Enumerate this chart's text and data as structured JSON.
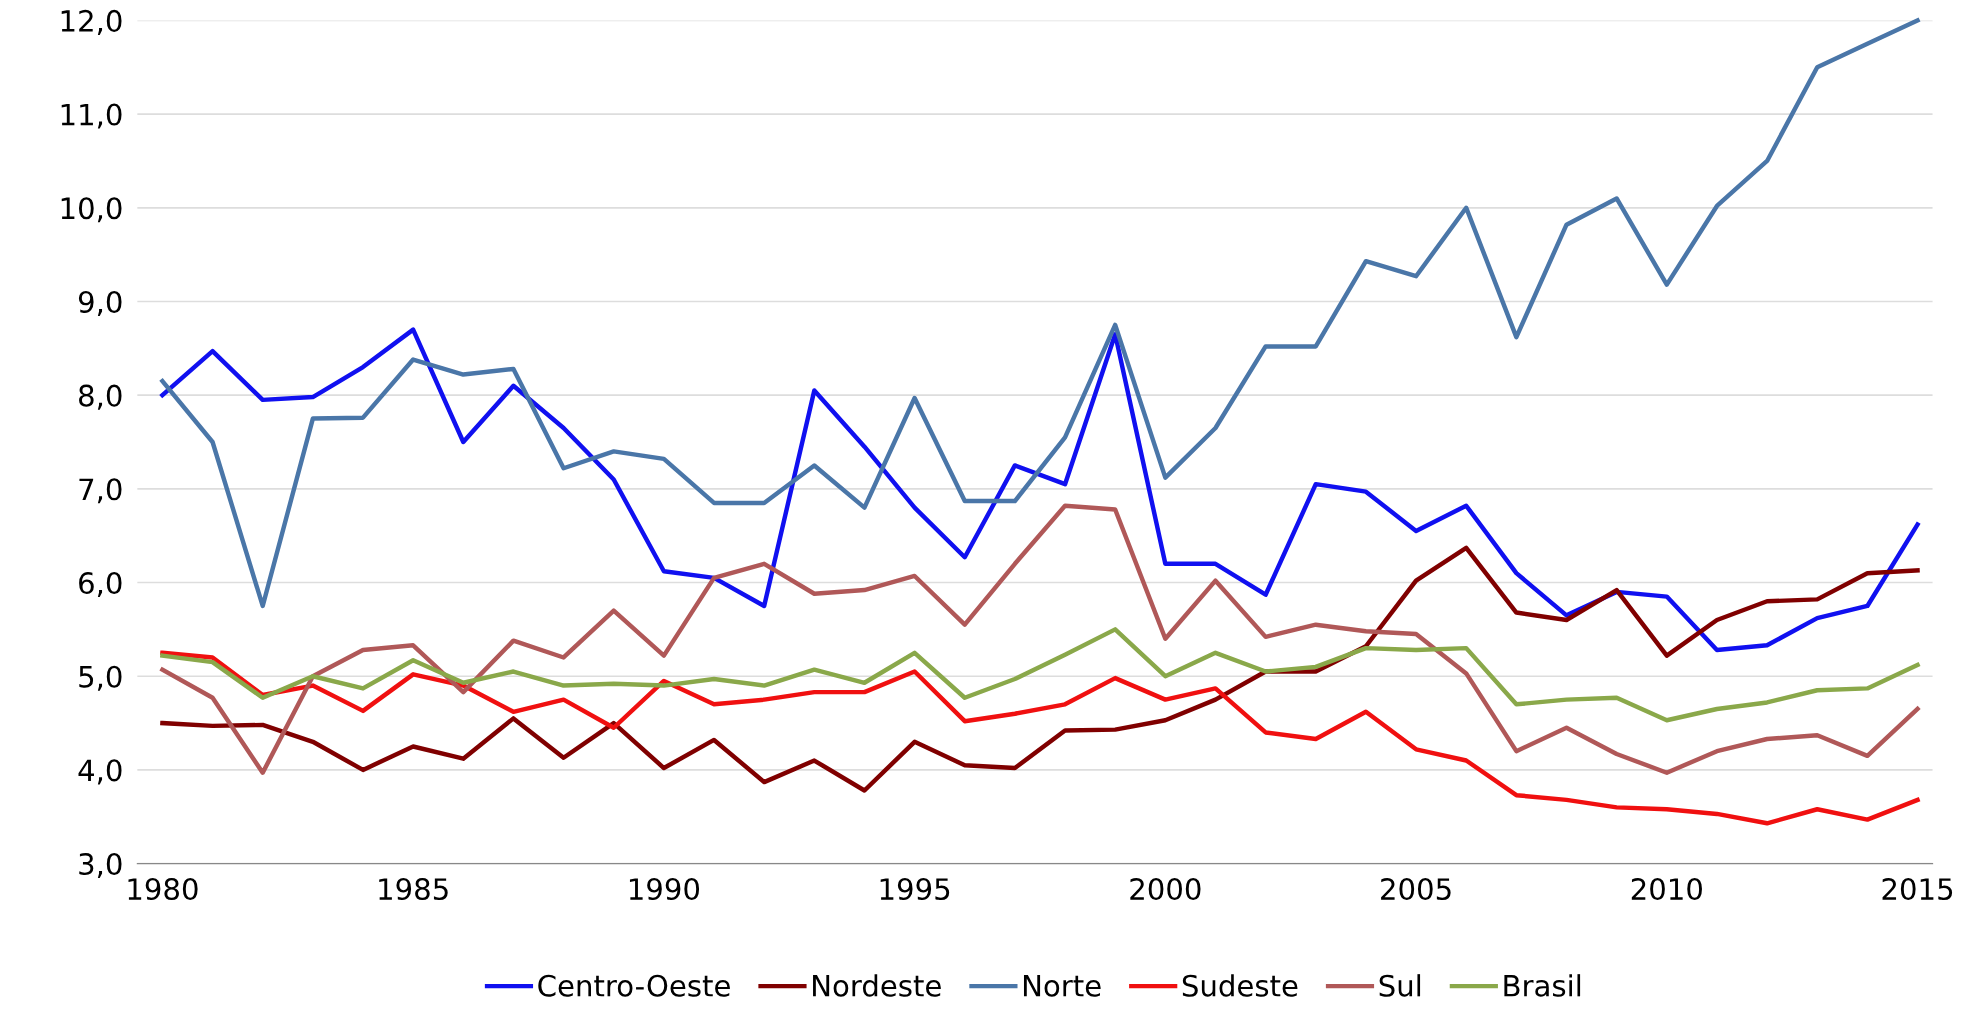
{
  "chart_data": {
    "type": "line",
    "x": [
      1980,
      1981,
      1982,
      1983,
      1984,
      1985,
      1986,
      1987,
      1988,
      1989,
      1990,
      1991,
      1992,
      1993,
      1994,
      1995,
      1996,
      1997,
      1998,
      1999,
      2000,
      2001,
      2002,
      2003,
      2004,
      2005,
      2006,
      2007,
      2008,
      2009,
      2010,
      2011,
      2012,
      2013,
      2014,
      2015
    ],
    "series": [
      {
        "name": "Centro-Oeste",
        "color": "#1010f0",
        "values": [
          8.0,
          8.47,
          7.95,
          7.98,
          8.3,
          8.7,
          7.5,
          8.1,
          7.65,
          7.1,
          6.12,
          6.05,
          5.75,
          8.05,
          7.45,
          6.8,
          6.27,
          7.25,
          7.05,
          8.65,
          6.2,
          6.2,
          5.87,
          7.05,
          6.97,
          6.55,
          6.82,
          6.1,
          5.65,
          5.9,
          5.85,
          5.28,
          5.33,
          5.62,
          5.75,
          6.62
        ]
      },
      {
        "name": "Nordeste",
        "color": "#800000",
        "values": [
          4.5,
          4.47,
          4.48,
          4.3,
          4.0,
          4.25,
          4.12,
          4.55,
          4.13,
          4.5,
          4.02,
          4.32,
          3.87,
          4.1,
          3.78,
          4.3,
          4.05,
          4.02,
          4.42,
          4.43,
          4.53,
          4.75,
          5.05,
          5.05,
          5.32,
          6.02,
          6.37,
          5.68,
          5.6,
          5.92,
          5.22,
          5.6,
          5.8,
          5.82,
          6.1,
          6.13
        ]
      },
      {
        "name": "Norte",
        "color": "#4a76a8",
        "values": [
          8.15,
          7.5,
          5.75,
          7.75,
          7.76,
          8.38,
          8.22,
          8.28,
          7.22,
          7.4,
          7.32,
          6.85,
          6.85,
          7.25,
          6.8,
          7.97,
          6.87,
          6.87,
          7.55,
          8.75,
          7.12,
          7.65,
          8.52,
          8.52,
          9.43,
          9.27,
          10.0,
          8.62,
          9.82,
          10.1,
          9.18,
          10.02,
          10.5,
          11.5,
          11.75,
          12.0
        ]
      },
      {
        "name": "Sudeste",
        "color": "#f01010",
        "values": [
          5.25,
          5.2,
          4.8,
          4.9,
          4.63,
          5.02,
          4.9,
          4.62,
          4.75,
          4.45,
          4.95,
          4.7,
          4.75,
          4.83,
          4.83,
          5.05,
          4.52,
          4.6,
          4.7,
          4.98,
          4.75,
          4.87,
          4.4,
          4.33,
          4.62,
          4.22,
          4.1,
          3.73,
          3.68,
          3.6,
          3.58,
          3.53,
          3.43,
          3.58,
          3.47,
          3.68
        ]
      },
      {
        "name": "Sul",
        "color": "#b05858",
        "values": [
          5.07,
          4.77,
          3.97,
          5.0,
          5.28,
          5.33,
          4.83,
          5.38,
          5.2,
          5.7,
          5.22,
          6.05,
          6.2,
          5.88,
          5.92,
          6.07,
          5.55,
          6.2,
          6.82,
          6.78,
          5.4,
          6.02,
          5.42,
          5.55,
          5.48,
          5.45,
          5.03,
          4.2,
          4.45,
          4.17,
          3.97,
          4.2,
          4.33,
          4.37,
          4.15,
          4.65
        ]
      },
      {
        "name": "Brasil",
        "color": "#8aa84a",
        "values": [
          5.22,
          5.15,
          4.77,
          5.0,
          4.87,
          5.17,
          4.93,
          5.05,
          4.9,
          4.92,
          4.9,
          4.97,
          4.9,
          5.07,
          4.93,
          5.25,
          4.77,
          4.97,
          5.23,
          5.5,
          5.0,
          5.25,
          5.05,
          5.1,
          5.3,
          5.28,
          5.3,
          4.7,
          4.75,
          4.77,
          4.53,
          4.65,
          4.72,
          4.85,
          4.87,
          5.12
        ]
      }
    ],
    "xlim": [
      1979.5,
      2015.3
    ],
    "xticks": [
      1980,
      1985,
      1990,
      1995,
      2000,
      2005,
      2010,
      2015
    ],
    "ylim": [
      3.0,
      12.0
    ],
    "yticks": [
      {
        "value": 3,
        "label": "3,0"
      },
      {
        "value": 4,
        "label": "4,0"
      },
      {
        "value": 5,
        "label": "5,0"
      },
      {
        "value": 6,
        "label": "6,0"
      },
      {
        "value": 7,
        "label": "7,0"
      },
      {
        "value": 8,
        "label": "8,0"
      },
      {
        "value": 9,
        "label": "9,0"
      },
      {
        "value": 10,
        "label": "10,0"
      },
      {
        "value": 11,
        "label": "11,0"
      },
      {
        "value": 12,
        "label": "12,0"
      }
    ],
    "grid": "y",
    "legend": "bottom",
    "marker": "none",
    "line_style": "solid"
  }
}
